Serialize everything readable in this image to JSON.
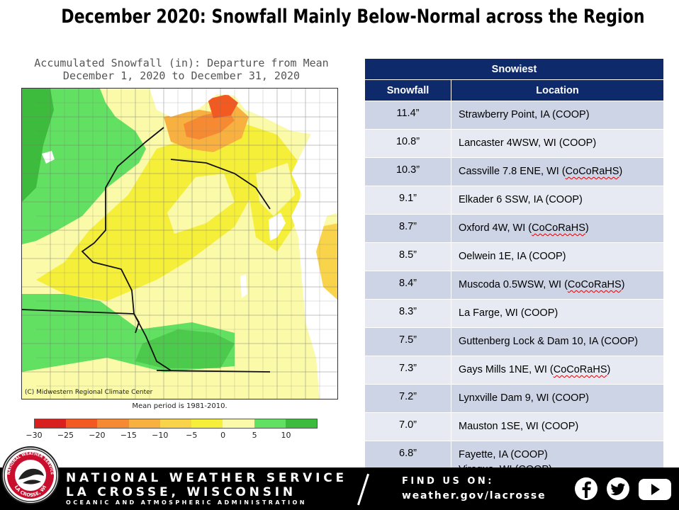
{
  "headline": "December 2020:  Snowfall Mainly Below-Normal across the Region",
  "map": {
    "title_line1": "Accumulated Snowfall (in): Departure from Mean",
    "title_line2": "December 1, 2020 to December 31, 2020",
    "credit": "(C) Midwestern Regional Climate Center",
    "mean_period": "Mean period is 1981-2010.",
    "legend": {
      "colors": [
        "#d8201e",
        "#f25a22",
        "#f58a33",
        "#f8b040",
        "#f9d44a",
        "#f5ef3a",
        "#fafaa8",
        "#62e062",
        "#3cbb3c"
      ],
      "ticks": [
        "−30",
        "−25",
        "−20",
        "−15",
        "−10",
        "−5",
        "0",
        "5",
        "10"
      ]
    }
  },
  "table": {
    "caption": "Snowiest",
    "col_snowfall": "Snowfall",
    "col_location": "Location",
    "rows": [
      {
        "value": "11.4”",
        "location": "Strawberry Point, IA (COOP)"
      },
      {
        "value": "10.8”",
        "location": "Lancaster 4WSW, WI (COOP)"
      },
      {
        "value": "10.3”",
        "location_pre": "Cassville 7.8 ENE, WI (",
        "location_mark": "CoCoRaHS",
        "location_post": ")"
      },
      {
        "value": "9.1”",
        "location": "Elkader 6 SSW, IA (COOP)"
      },
      {
        "value": "8.7”",
        "location_pre": "Oxford 4W, WI (",
        "location_mark": "CoCoRaHS",
        "location_post": ")"
      },
      {
        "value": "8.5”",
        "location": "Oelwein 1E, IA (COOP)"
      },
      {
        "value": "8.4”",
        "location_pre": "Muscoda 0.5WSW, WI (",
        "location_mark": "CoCoRaHS",
        "location_post": ")"
      },
      {
        "value": "8.3”",
        "location": "La Farge, WI (COOP)"
      },
      {
        "value": "7.5”",
        "location": "Guttenberg Lock & Dam 10, IA (COOP)"
      },
      {
        "value": "7.3”",
        "location_pre": "Gays Mills 1NE, WI (",
        "location_mark": "CoCoRaHS",
        "location_post": ")"
      },
      {
        "value": "7.2”",
        "location": "Lynxville Dam 9, WI (COOP)"
      },
      {
        "value": "7.0”",
        "location": "Mauston 1SE, WI (COOP)"
      },
      {
        "value": "6.8”",
        "location": "Fayette, IA (COOP)",
        "location2": "Viroqua, WI (COOP)"
      }
    ]
  },
  "footer": {
    "line1": "NATIONAL WEATHER SERVICE",
    "line2": "LA CROSSE, WISCONSIN",
    "line3": "OCEANIC AND ATMOSPHERIC ADMINISTRATION",
    "find_us": "FIND US ON:",
    "website": "weather.gov/lacrosse",
    "logo_text": "NATIONAL WEATHER SERVICE",
    "logo_subtext": "LA CROSSE, WI",
    "social_icons": [
      "facebook-icon",
      "twitter-icon",
      "youtube-icon"
    ]
  }
}
